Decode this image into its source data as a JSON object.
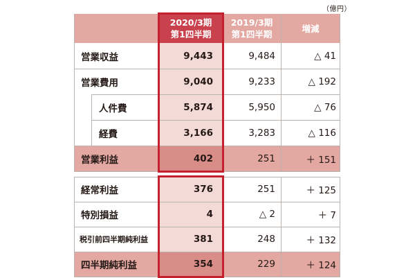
{
  "unit": "（億円）",
  "header": {
    "current": [
      "2020/3期",
      "第1四半期"
    ],
    "previous": [
      "2019/3期",
      "第1四半期"
    ],
    "diff": "増減"
  },
  "rows": [
    {
      "label": "営業収益",
      "current": "9,443",
      "previous": "9,484",
      "diff": "△ 41"
    },
    {
      "label": "営業費用",
      "current": "9,040",
      "previous": "9,233",
      "diff": "△ 192"
    },
    {
      "label": "人件費",
      "current": "5,874",
      "previous": "5,950",
      "diff": "△ 76"
    },
    {
      "label": "経費",
      "current": "3,166",
      "previous": "3,283",
      "diff": "△ 116"
    },
    {
      "label": "営業利益",
      "current": "402",
      "previous": "251",
      "diff": "＋ 151"
    },
    {
      "label": "経常利益",
      "current": "376",
      "previous": "251",
      "diff": "＋ 125"
    },
    {
      "label": "特別損益",
      "current": "4",
      "previous": "△ 2",
      "diff": "＋ 7"
    },
    {
      "label": "税引前四半期純利益",
      "current": "381",
      "previous": "248",
      "diff": "＋ 132"
    },
    {
      "label": "四半期純利益",
      "current": "354",
      "previous": "229",
      "diff": "＋ 124"
    }
  ]
}
